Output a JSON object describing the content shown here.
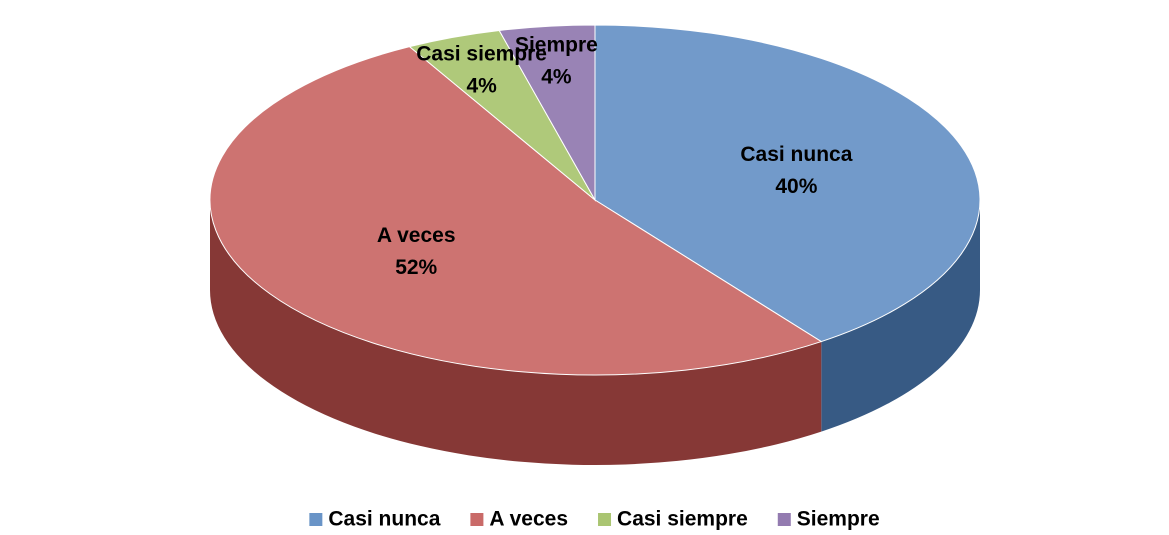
{
  "chart_data": {
    "type": "pie",
    "categories": [
      "Casi nunca",
      "A veces",
      "Casi siempre",
      "Siempre"
    ],
    "values": [
      40,
      52,
      4,
      4
    ],
    "value_labels": [
      "40%",
      "52%",
      "4%",
      "4%"
    ],
    "colors": [
      "#4f81bd",
      "#c0504d",
      "#9bbb59",
      "#8064a2"
    ],
    "legend": "bottom"
  }
}
